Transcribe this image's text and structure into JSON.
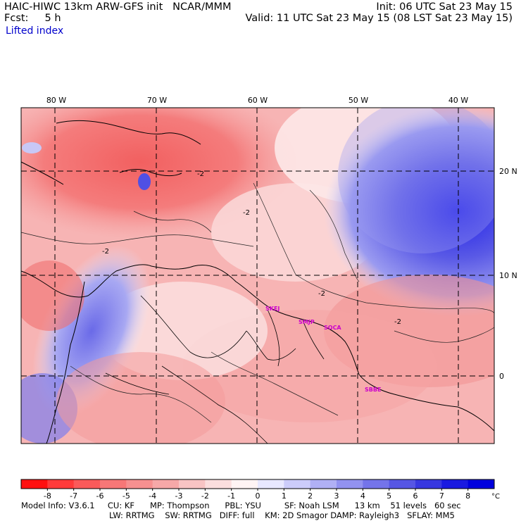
{
  "header": {
    "model_line": "HAIC-HIWC 13km ARW-GFS init   NCAR/MMM",
    "forecast_line": "Fcst:     5 h",
    "init_line": "Init: 06 UTC Sat 23 May 15",
    "valid_line": "Valid: 11 UTC Sat 23 May 15 (08 LST Sat 23 May 15)",
    "variable": "Lifted index"
  },
  "map": {
    "lon_labels": [
      "80 W",
      "70 W",
      "60 W",
      "50 W",
      "40 W"
    ],
    "lat_labels": [
      "20 N",
      "10 N",
      "0"
    ],
    "contour_labels": [
      "-2",
      "-2",
      "-2",
      "-2",
      "-2"
    ],
    "station_labels": [
      "SKEJ",
      "SMJP",
      "SOCA",
      "SBBE"
    ],
    "station_color": "#cc00cc"
  },
  "colorbar": {
    "ticks": [
      "-8",
      "-7",
      "-6",
      "-5",
      "-4",
      "-3",
      "-2",
      "-1",
      "0",
      "1",
      "2",
      "3",
      "4",
      "5",
      "6",
      "7",
      "8"
    ],
    "unit": "°C",
    "colors": [
      "#ff1010",
      "#ff3a3a",
      "#fa5a5a",
      "#f77777",
      "#f69090",
      "#f6a8a8",
      "#f8c4c4",
      "#fbdede",
      "#fff4f4",
      "#e8e8ff",
      "#ccccfa",
      "#b0b0f5",
      "#9292f0",
      "#7474ea",
      "#5656e4",
      "#3838e0",
      "#1a1ae0",
      "#0000dd"
    ]
  },
  "footer": {
    "line1": "Model Info: V3.6.1     CU: KF      MP: Thompson      PBL: YSU         SF: Noah LSM      13 km    51 levels   60 sec",
    "line2": "LW: RRTMG    SW: RRTMG   DIFF: full    KM: 2D Smagor DAMP: Rayleigh3   SFLAY: MM5"
  }
}
